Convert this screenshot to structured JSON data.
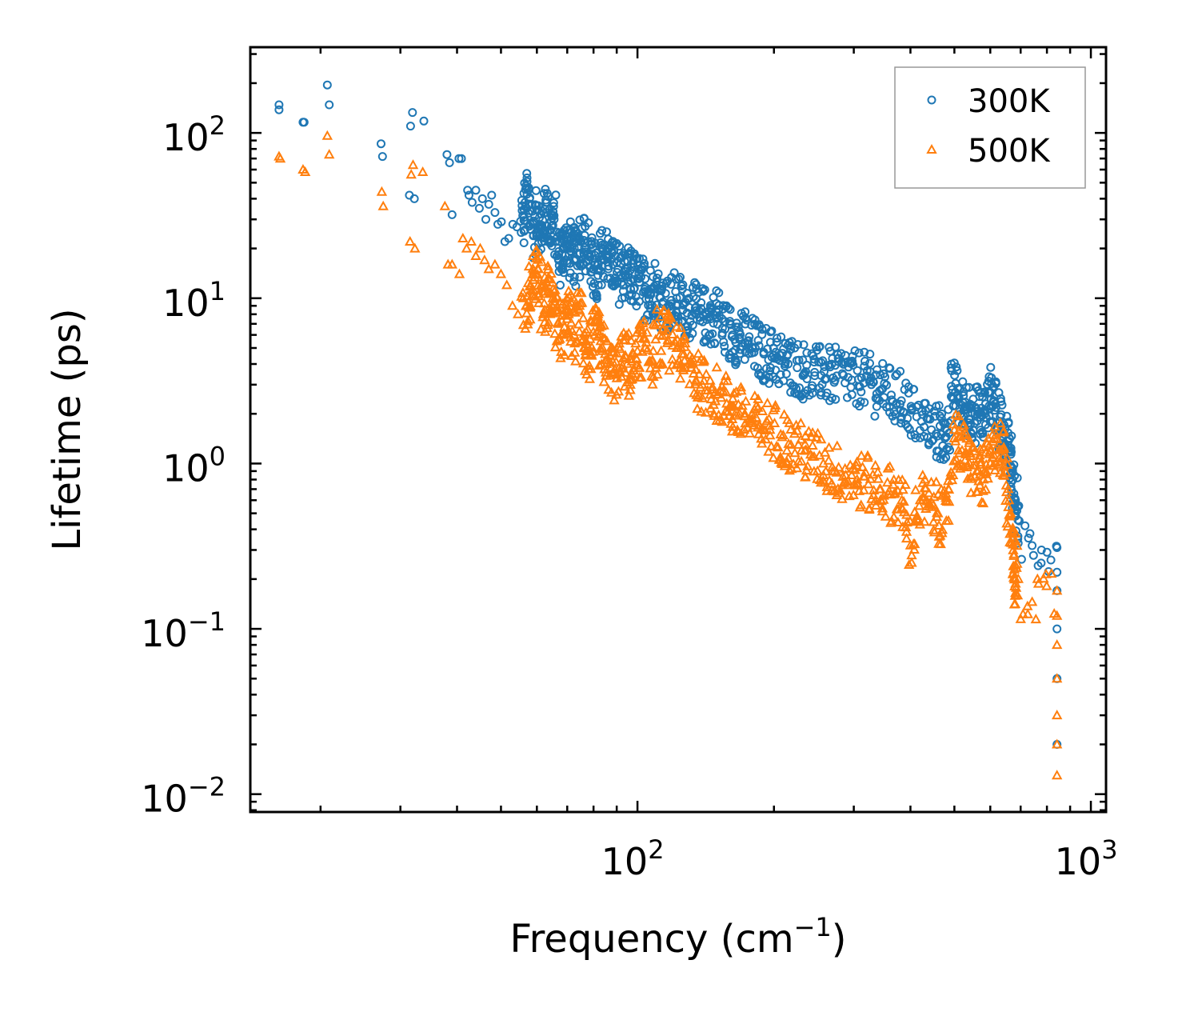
{
  "chart_data": {
    "type": "scatter",
    "title": "",
    "xlabel_main": "Frequency (cm",
    "xlabel_exp": "−1",
    "xlabel_close": ")",
    "ylabel": "Lifetime (ps)",
    "xscale": "log",
    "yscale": "log",
    "xlim": [
      14,
      1080
    ],
    "ylim": [
      0.0078,
      330
    ],
    "legend_position": "top-right",
    "x_ticks": [
      {
        "value": 100,
        "base": "10",
        "exp": "2"
      },
      {
        "value": 1000,
        "base": "10",
        "exp": "3"
      }
    ],
    "y_ticks": [
      {
        "value": 100,
        "base": "10",
        "exp": "2"
      },
      {
        "value": 10,
        "base": "10",
        "exp": "1"
      },
      {
        "value": 1,
        "base": "10",
        "exp": "0"
      },
      {
        "value": 0.1,
        "base": "10",
        "exp": "−1"
      },
      {
        "value": 0.01,
        "base": "10",
        "exp": "−2"
      }
    ],
    "series": [
      {
        "name": "300K",
        "marker": "circle",
        "color": "#1f77b4",
        "x": [
          16.2,
          16.2,
          18.3,
          18.4,
          20.7,
          20.9,
          27.2,
          27.4,
          31.4,
          31.6,
          31.9,
          32.2,
          33.8,
          38.0,
          38.5,
          39.0,
          40.4,
          40.9,
          42.2,
          42.5,
          43.2,
          44.0,
          44.8,
          45.5,
          46.3,
          47.0,
          47.7,
          48.5,
          49.2,
          50.1,
          51.0,
          52.0,
          53.1,
          54.2,
          55.4,
          56.5,
          57.8,
          59.0,
          60.2,
          61.5,
          62.8,
          64.0,
          65.5,
          67.0,
          68.5,
          70.0,
          71.5,
          73.0,
          74.8,
          76.5,
          78.2,
          80.0,
          82.0,
          84.0,
          86.0,
          88.2,
          90.5,
          93.0,
          95.5,
          98.0,
          101,
          104,
          107,
          110,
          114,
          118,
          122,
          126,
          130,
          135,
          140,
          145,
          150,
          156,
          162,
          168,
          175,
          182,
          190,
          198,
          206,
          215,
          225,
          235,
          246,
          258,
          270,
          283,
          297,
          312,
          328,
          345,
          363,
          382,
          402,
          423,
          445,
          468,
          480,
          495,
          510,
          525,
          540,
          555,
          570,
          585,
          600,
          615,
          630,
          645,
          660,
          672,
          682,
          690,
          842,
          842,
          842,
          842,
          842,
          842
        ],
        "y": [
          148,
          138,
          116,
          116,
          195,
          148,
          86,
          72,
          42,
          110,
          133,
          40,
          118,
          74,
          66,
          32,
          70,
          70,
          45,
          42,
          38,
          45,
          35,
          40,
          30,
          37,
          42,
          33,
          28,
          29,
          22,
          23,
          28,
          27,
          25,
          38,
          40,
          24,
          34,
          22,
          38,
          26,
          30,
          17,
          20,
          21,
          19,
          17,
          22,
          24,
          18,
          15,
          12,
          20,
          18,
          16,
          15,
          12,
          14,
          13,
          12.5,
          11,
          10.5,
          12,
          9.5,
          9,
          10,
          8.5,
          8.8,
          8,
          7.8,
          7.5,
          8.2,
          6.5,
          6,
          5.8,
          5.5,
          5,
          4.6,
          4.4,
          4.2,
          4.0,
          3.8,
          3.6,
          3.4,
          3.6,
          3.3,
          3.5,
          3.2,
          3.3,
          3.0,
          2.8,
          2.6,
          2.4,
          2.1,
          1.8,
          1.6,
          1.5,
          1.45,
          2.8,
          2.5,
          2.1,
          2.2,
          2.0,
          1.9,
          2.1,
          2.7,
          2.3,
          1.8,
          1.5,
          1.2,
          0.9,
          0.6,
          0.35,
          0.31,
          0.22,
          0.17,
          0.1,
          0.05,
          0.02
        ]
      },
      {
        "name": "500K",
        "marker": "triangle",
        "color": "#ff7f0e",
        "x": [
          16.2,
          16.3,
          18.3,
          18.5,
          20.7,
          20.9,
          27.3,
          27.5,
          31.5,
          31.7,
          32.0,
          32.3,
          33.6,
          37.6,
          38.2,
          39.0,
          40.5,
          41.2,
          42.0,
          43.0,
          44.0,
          45.0,
          46.0,
          47.0,
          48.5,
          50.0,
          51.5,
          53.0,
          54.5,
          56.0,
          57.5,
          59.0,
          60.5,
          62.0,
          63.5,
          65.0,
          66.8,
          68.5,
          70.5,
          72.5,
          74.5,
          76.5,
          78.5,
          80.5,
          83.0,
          85.5,
          88.0,
          91.0,
          94.0,
          97.0,
          100,
          104,
          108,
          112,
          117,
          122,
          127,
          133,
          139,
          146,
          153,
          160,
          168,
          177,
          186,
          196,
          207,
          218,
          230,
          243,
          257,
          272,
          288,
          305,
          323,
          342,
          362,
          383,
          400,
          420,
          440,
          460,
          480,
          500,
          520,
          540,
          560,
          580,
          600,
          620,
          640,
          660,
          672,
          682,
          688,
          842,
          842,
          842,
          842,
          842,
          842,
          842
        ],
        "y": [
          72,
          70,
          60,
          58,
          96,
          74,
          44,
          36,
          22,
          56,
          64,
          20,
          58,
          36,
          16,
          16,
          14,
          23,
          20,
          22,
          18,
          20,
          17,
          15,
          16,
          14,
          12,
          9,
          8,
          10,
          9.5,
          14,
          15,
          8,
          11,
          10,
          7,
          6,
          8,
          6,
          9,
          5,
          4.5,
          6,
          5.5,
          4,
          3.5,
          3.8,
          4.5,
          3.5,
          4.8,
          5,
          4.2,
          6,
          5.5,
          5,
          4.2,
          3.5,
          3,
          2.8,
          2.5,
          2.2,
          2.0,
          1.8,
          1.7,
          1.6,
          1.5,
          1.3,
          1.2,
          1.1,
          1.0,
          0.9,
          0.85,
          0.8,
          0.75,
          0.7,
          0.65,
          0.6,
          0.32,
          0.6,
          0.55,
          0.5,
          0.45,
          1.6,
          1.2,
          1.0,
          0.9,
          0.8,
          1.0,
          1.4,
          1.1,
          0.6,
          0.35,
          0.2,
          0.16,
          0.17,
          0.12,
          0.08,
          0.05,
          0.03,
          0.02,
          0.013
        ]
      }
    ]
  }
}
